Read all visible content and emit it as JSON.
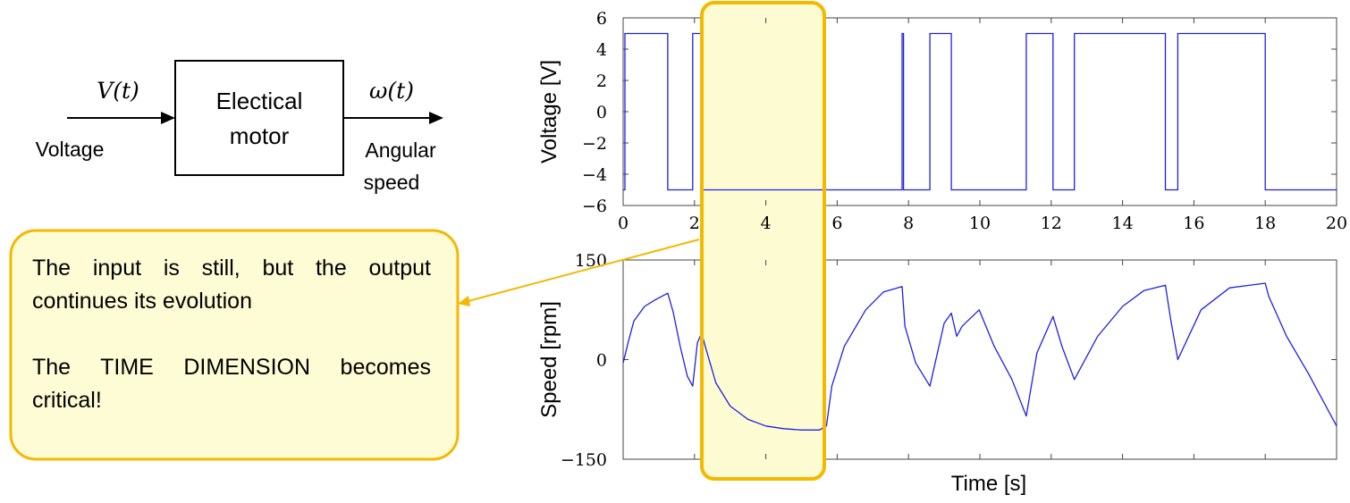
{
  "block_diagram": {
    "input_signal": "V(t)",
    "input_label": "Voltage",
    "block_label_line1": "Electical",
    "block_label_line2": "motor",
    "output_signal": "ω(t)",
    "output_label_line1": "Angular",
    "output_label_line2": "speed"
  },
  "callout": {
    "paragraph1": "The input is still, but the output continues its evolution",
    "paragraph2": "The TIME DIMENSION becomes critical!"
  },
  "colors": {
    "signal": "#1f1fe6",
    "highlight_fill": "#fdfbd2",
    "highlight_border": "#f5b800",
    "callout_fill": "#fefcd5"
  },
  "chart_data": [
    {
      "type": "line",
      "ylabel": "Voltage [V]",
      "xlabel": "",
      "xlim": [
        0,
        20
      ],
      "ylim": [
        -6,
        6
      ],
      "xticks": [
        "0",
        "2",
        "4",
        "6",
        "8",
        "10",
        "12",
        "14",
        "16",
        "18",
        "20"
      ],
      "yticks": [
        "6",
        "4",
        "2",
        "0",
        "−2",
        "−4",
        "−6"
      ],
      "series": [
        {
          "x": [
            0,
            0.05,
            0.05,
            1.25,
            1.25,
            1.95,
            1.95,
            2.08,
            2.08,
            2.2,
            2.2,
            2.3,
            2.3,
            7.82,
            7.82,
            7.86,
            7.86,
            7.9,
            7.9,
            8.6,
            8.6,
            9.2,
            9.2,
            9.4,
            9.4,
            9.98,
            9.98,
            11.3,
            11.3,
            12.05,
            12.05,
            12.65,
            12.65,
            15.2,
            15.2,
            15.55,
            15.55,
            18.0,
            18.0,
            20
          ],
          "y": [
            -5,
            -5,
            5,
            5,
            -5,
            -5,
            5,
            5,
            5,
            5,
            -5,
            -5,
            -5,
            -5,
            5,
            5,
            -5,
            -5,
            -5,
            -5,
            5,
            5,
            -5,
            -5,
            -5,
            -5,
            -5,
            -5,
            5,
            5,
            -5,
            -5,
            5,
            5,
            -5,
            -5,
            5,
            5,
            -5,
            -5
          ]
        }
      ]
    },
    {
      "type": "line",
      "ylabel": "Speed [rpm]",
      "xlabel": "Time [s]",
      "xlim": [
        0,
        20
      ],
      "ylim": [
        -150,
        150
      ],
      "yticks": [
        "150",
        "0",
        "−150"
      ],
      "series": [
        {
          "x": [
            0.0,
            0.15,
            0.3,
            0.6,
            0.9,
            1.25,
            1.4,
            1.6,
            1.8,
            1.95,
            2.08,
            2.2,
            2.3,
            2.6,
            3.0,
            3.5,
            4.0,
            4.5,
            5.0,
            5.5,
            5.7,
            5.85,
            6.2,
            6.8,
            7.3,
            7.82,
            7.9,
            8.2,
            8.6,
            9.0,
            9.2,
            9.35,
            9.5,
            9.98,
            10.4,
            10.9,
            11.3,
            11.6,
            12.05,
            12.3,
            12.65,
            13.3,
            14.0,
            14.6,
            15.2,
            15.35,
            15.55,
            16.2,
            17.0,
            18.0,
            18.1,
            18.6,
            19.2,
            20.0
          ],
          "y": [
            -5,
            28,
            58,
            80,
            90,
            100,
            72,
            20,
            -25,
            -40,
            25,
            40,
            20,
            -35,
            -70,
            -90,
            -100,
            -104,
            -106,
            -106,
            -100,
            -40,
            20,
            75,
            102,
            110,
            50,
            -5,
            -40,
            55,
            70,
            35,
            50,
            75,
            20,
            -30,
            -85,
            10,
            65,
            20,
            -30,
            35,
            80,
            104,
            112,
            60,
            0,
            75,
            108,
            115,
            95,
            35,
            -20,
            -100
          ]
        }
      ]
    }
  ]
}
